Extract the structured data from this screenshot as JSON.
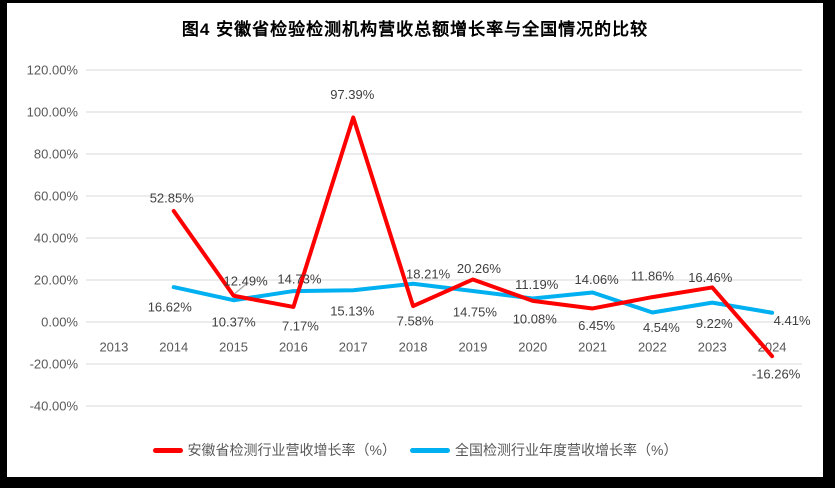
{
  "title": "图4 安徽省检验检测机构营收总额增长率与全国情况的比较",
  "chart_data": {
    "type": "line",
    "x": [
      "2013",
      "2014",
      "2015",
      "2016",
      "2017",
      "2018",
      "2019",
      "2020",
      "2021",
      "2022",
      "2023",
      "2024"
    ],
    "series": [
      {
        "name": "安徽省检测行业营收增长率（%）",
        "color": "#FF0000",
        "values": [
          null,
          52.85,
          12.49,
          7.17,
          97.39,
          7.58,
          20.26,
          10.08,
          6.45,
          11.86,
          16.46,
          -16.26
        ],
        "point_labels": [
          "",
          "52.85%",
          "12.49%",
          "7.17%",
          "97.39%",
          "7.58%",
          "20.26%",
          "10.08%",
          "6.45%",
          "11.86%",
          "16.46%",
          "-16.26%"
        ],
        "label_offsets": [
          null,
          [
            -2,
            -13
          ],
          [
            12,
            -15
          ],
          [
            7,
            19
          ],
          [
            -1,
            -23
          ],
          [
            2,
            15
          ],
          [
            6,
            -11
          ],
          [
            2,
            18
          ],
          [
            4,
            17
          ],
          [
            0,
            -21
          ],
          [
            -2,
            -10
          ],
          [
            4,
            18
          ]
        ],
        "callout_leader_index": 2
      },
      {
        "name": "全国检测行业年度营收增长率（%）",
        "color": "#00B0F0",
        "values": [
          null,
          16.62,
          10.37,
          14.73,
          15.13,
          18.21,
          14.75,
          11.19,
          14.06,
          4.54,
          9.22,
          4.41
        ],
        "point_labels": [
          "",
          "16.62%",
          "10.37%",
          "14.73%",
          "15.13%",
          "18.21%",
          "14.75%",
          "11.19%",
          "14.06%",
          "4.54%",
          "9.22%",
          "4.41%"
        ],
        "label_offsets": [
          null,
          [
            -4,
            20
          ],
          [
            0,
            22
          ],
          [
            6,
            -12
          ],
          [
            -1,
            21
          ],
          [
            15,
            -10
          ],
          [
            2,
            21
          ],
          [
            4,
            -14
          ],
          [
            4,
            -13
          ],
          [
            9,
            15
          ],
          [
            2,
            21
          ],
          [
            20,
            8
          ]
        ]
      }
    ],
    "ylim": [
      -40,
      120
    ],
    "ytick_values": [
      120,
      100,
      80,
      60,
      40,
      20,
      0,
      -20,
      -40
    ],
    "ytick_labels": [
      "120.00%",
      "100.00%",
      "80.00%",
      "60.00%",
      "40.00%",
      "20.00%",
      "0.00%",
      "-20.00%",
      "-40.00%"
    ],
    "grid": true,
    "legend_position": "bottom"
  },
  "colors": {
    "background": "#FFFFFF",
    "frame_border": "#000000",
    "grid": "#D9D9D9",
    "axis_text": "#595959",
    "data_label_text": "#404040",
    "leader_line": "#A6A6A6"
  }
}
